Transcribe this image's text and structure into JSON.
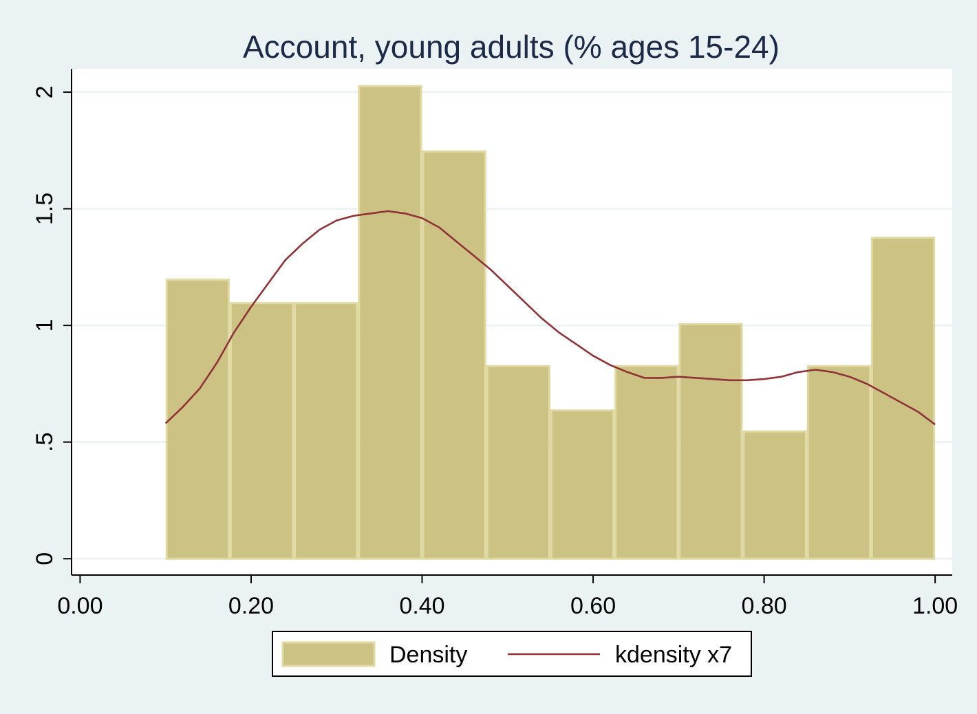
{
  "chart_data": {
    "type": "bar",
    "title": "Account, young adults (% ages 15-24)",
    "xlabel": "",
    "ylabel": "",
    "xlim": [
      -0.01,
      1.02
    ],
    "ylim": [
      -0.07,
      2.1
    ],
    "x_ticks": [
      0.0,
      0.2,
      0.4,
      0.6,
      0.8,
      1.0
    ],
    "x_tick_labels": [
      "0.00",
      "0.20",
      "0.40",
      "0.60",
      "0.80",
      "1.00"
    ],
    "y_ticks": [
      0,
      0.5,
      1,
      1.5,
      2
    ],
    "y_tick_labels": [
      "0",
      ".5",
      "1",
      "1.5",
      "2"
    ],
    "grid": true,
    "legend_position": "bottom",
    "colors": {
      "background": "#eaf2f3",
      "plot_bg": "#ffffff",
      "grid": "#eaf2f3",
      "bar_fill": "#cbc283",
      "bar_stroke": "#e0d9a3",
      "line": "#903336",
      "text": "#1c2a48"
    },
    "histogram": {
      "name": "Density",
      "bin_start": 0.1,
      "bin_width": 0.075,
      "values": [
        1.2,
        1.1,
        1.1,
        2.03,
        1.75,
        0.83,
        0.64,
        0.83,
        1.01,
        0.55,
        0.83,
        1.38
      ]
    },
    "kdensity": {
      "name": "kdensity x7",
      "x": [
        0.1,
        0.12,
        0.14,
        0.16,
        0.18,
        0.2,
        0.22,
        0.24,
        0.26,
        0.28,
        0.3,
        0.32,
        0.34,
        0.36,
        0.38,
        0.4,
        0.42,
        0.44,
        0.46,
        0.48,
        0.5,
        0.52,
        0.54,
        0.56,
        0.58,
        0.6,
        0.62,
        0.64,
        0.66,
        0.68,
        0.7,
        0.72,
        0.74,
        0.76,
        0.78,
        0.8,
        0.82,
        0.84,
        0.86,
        0.88,
        0.9,
        0.92,
        0.94,
        0.96,
        0.98,
        1.0
      ],
      "y": [
        0.58,
        0.65,
        0.73,
        0.84,
        0.97,
        1.08,
        1.18,
        1.28,
        1.35,
        1.41,
        1.45,
        1.47,
        1.48,
        1.49,
        1.48,
        1.46,
        1.42,
        1.36,
        1.3,
        1.24,
        1.17,
        1.1,
        1.03,
        0.97,
        0.92,
        0.87,
        0.83,
        0.8,
        0.775,
        0.775,
        0.78,
        0.775,
        0.77,
        0.765,
        0.765,
        0.77,
        0.78,
        0.8,
        0.81,
        0.8,
        0.78,
        0.75,
        0.71,
        0.67,
        0.63,
        0.575
      ]
    },
    "legend": {
      "items": [
        {
          "label": "Density",
          "kind": "swatch"
        },
        {
          "label": "kdensity x7",
          "kind": "line"
        }
      ]
    }
  }
}
